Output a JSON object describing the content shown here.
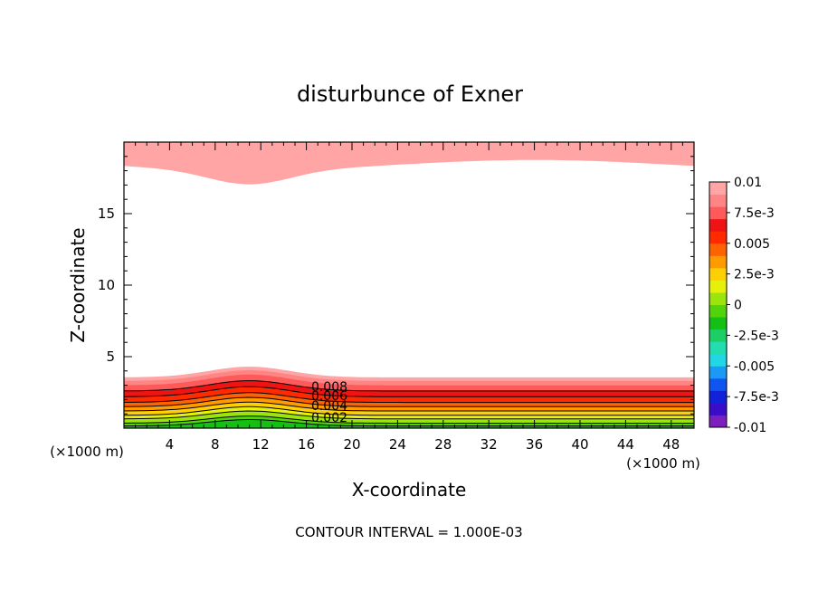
{
  "chart_data": {
    "type": "heatmap",
    "title": "disturbunce of Exner",
    "xlabel": "X-coordinate",
    "ylabel": "Z-coordinate",
    "x_unit_label": "(×1000 m)",
    "footer": "CONTOUR INTERVAL = 1.000E-03",
    "xlim": [
      0,
      50
    ],
    "ylim": [
      0,
      20
    ],
    "x_ticks": [
      4,
      8,
      12,
      16,
      20,
      24,
      28,
      32,
      36,
      40,
      44,
      48
    ],
    "y_ticks": [
      5,
      10,
      15
    ],
    "colorbar": {
      "range": [
        -0.01,
        0.01
      ],
      "labels": [
        "0.01",
        "7.5e-3",
        "0.005",
        "2.5e-3",
        "0",
        "-2.5e-3",
        "-0.005",
        "-7.5e-3",
        "-0.01"
      ],
      "colors": [
        "#7b1fbf",
        "#3a0ec8",
        "#1222d8",
        "#1055f0",
        "#1a9af5",
        "#20d7e3",
        "#22ddb0",
        "#1bcf66",
        "#13c013",
        "#52d40d",
        "#9be40c",
        "#e7f00a",
        "#ffcf05",
        "#ff9a00",
        "#ff6200",
        "#ff2a00",
        "#ee1414",
        "#ff5a5a",
        "#ff8585",
        "#ffa5a5"
      ]
    },
    "contour_labels": [
      "0.008",
      "0.006",
      "0.004",
      "0.002"
    ],
    "contour_interval": 0.001,
    "bands": {
      "bottom": [
        {
          "base": 0.15,
          "amp": 0.45,
          "color": "#13c013"
        },
        {
          "base": 0.35,
          "amp": 0.5,
          "color": "#52d40d"
        },
        {
          "base": 0.65,
          "amp": 0.55,
          "color": "#9be40c"
        },
        {
          "base": 0.9,
          "amp": 0.6,
          "color": "#e7f00a"
        },
        {
          "base": 1.2,
          "amp": 0.62,
          "color": "#ffcf05"
        },
        {
          "base": 1.5,
          "amp": 0.65,
          "color": "#ff9a00"
        },
        {
          "base": 1.8,
          "amp": 0.68,
          "color": "#ff6200"
        },
        {
          "base": 2.2,
          "amp": 0.7,
          "color": "#ff2a00"
        },
        {
          "base": 2.6,
          "amp": 0.72,
          "color": "#ee1414"
        },
        {
          "base": 3.0,
          "amp": 0.75,
          "color": "#ff5a5a"
        },
        {
          "base": 3.3,
          "amp": 0.75,
          "color": "#ff8585"
        },
        {
          "base": 3.55,
          "amp": 0.75,
          "color": "#ffa5a5"
        }
      ],
      "top": [
        {
          "base": 19.5,
          "amp": 0.6,
          "color": "#ff7070"
        },
        {
          "base": 18.8,
          "amp": 1.1,
          "color": "#ff8585"
        },
        {
          "base": 18.4,
          "amp": 1.0,
          "color": "#ffa5a5"
        }
      ]
    }
  }
}
